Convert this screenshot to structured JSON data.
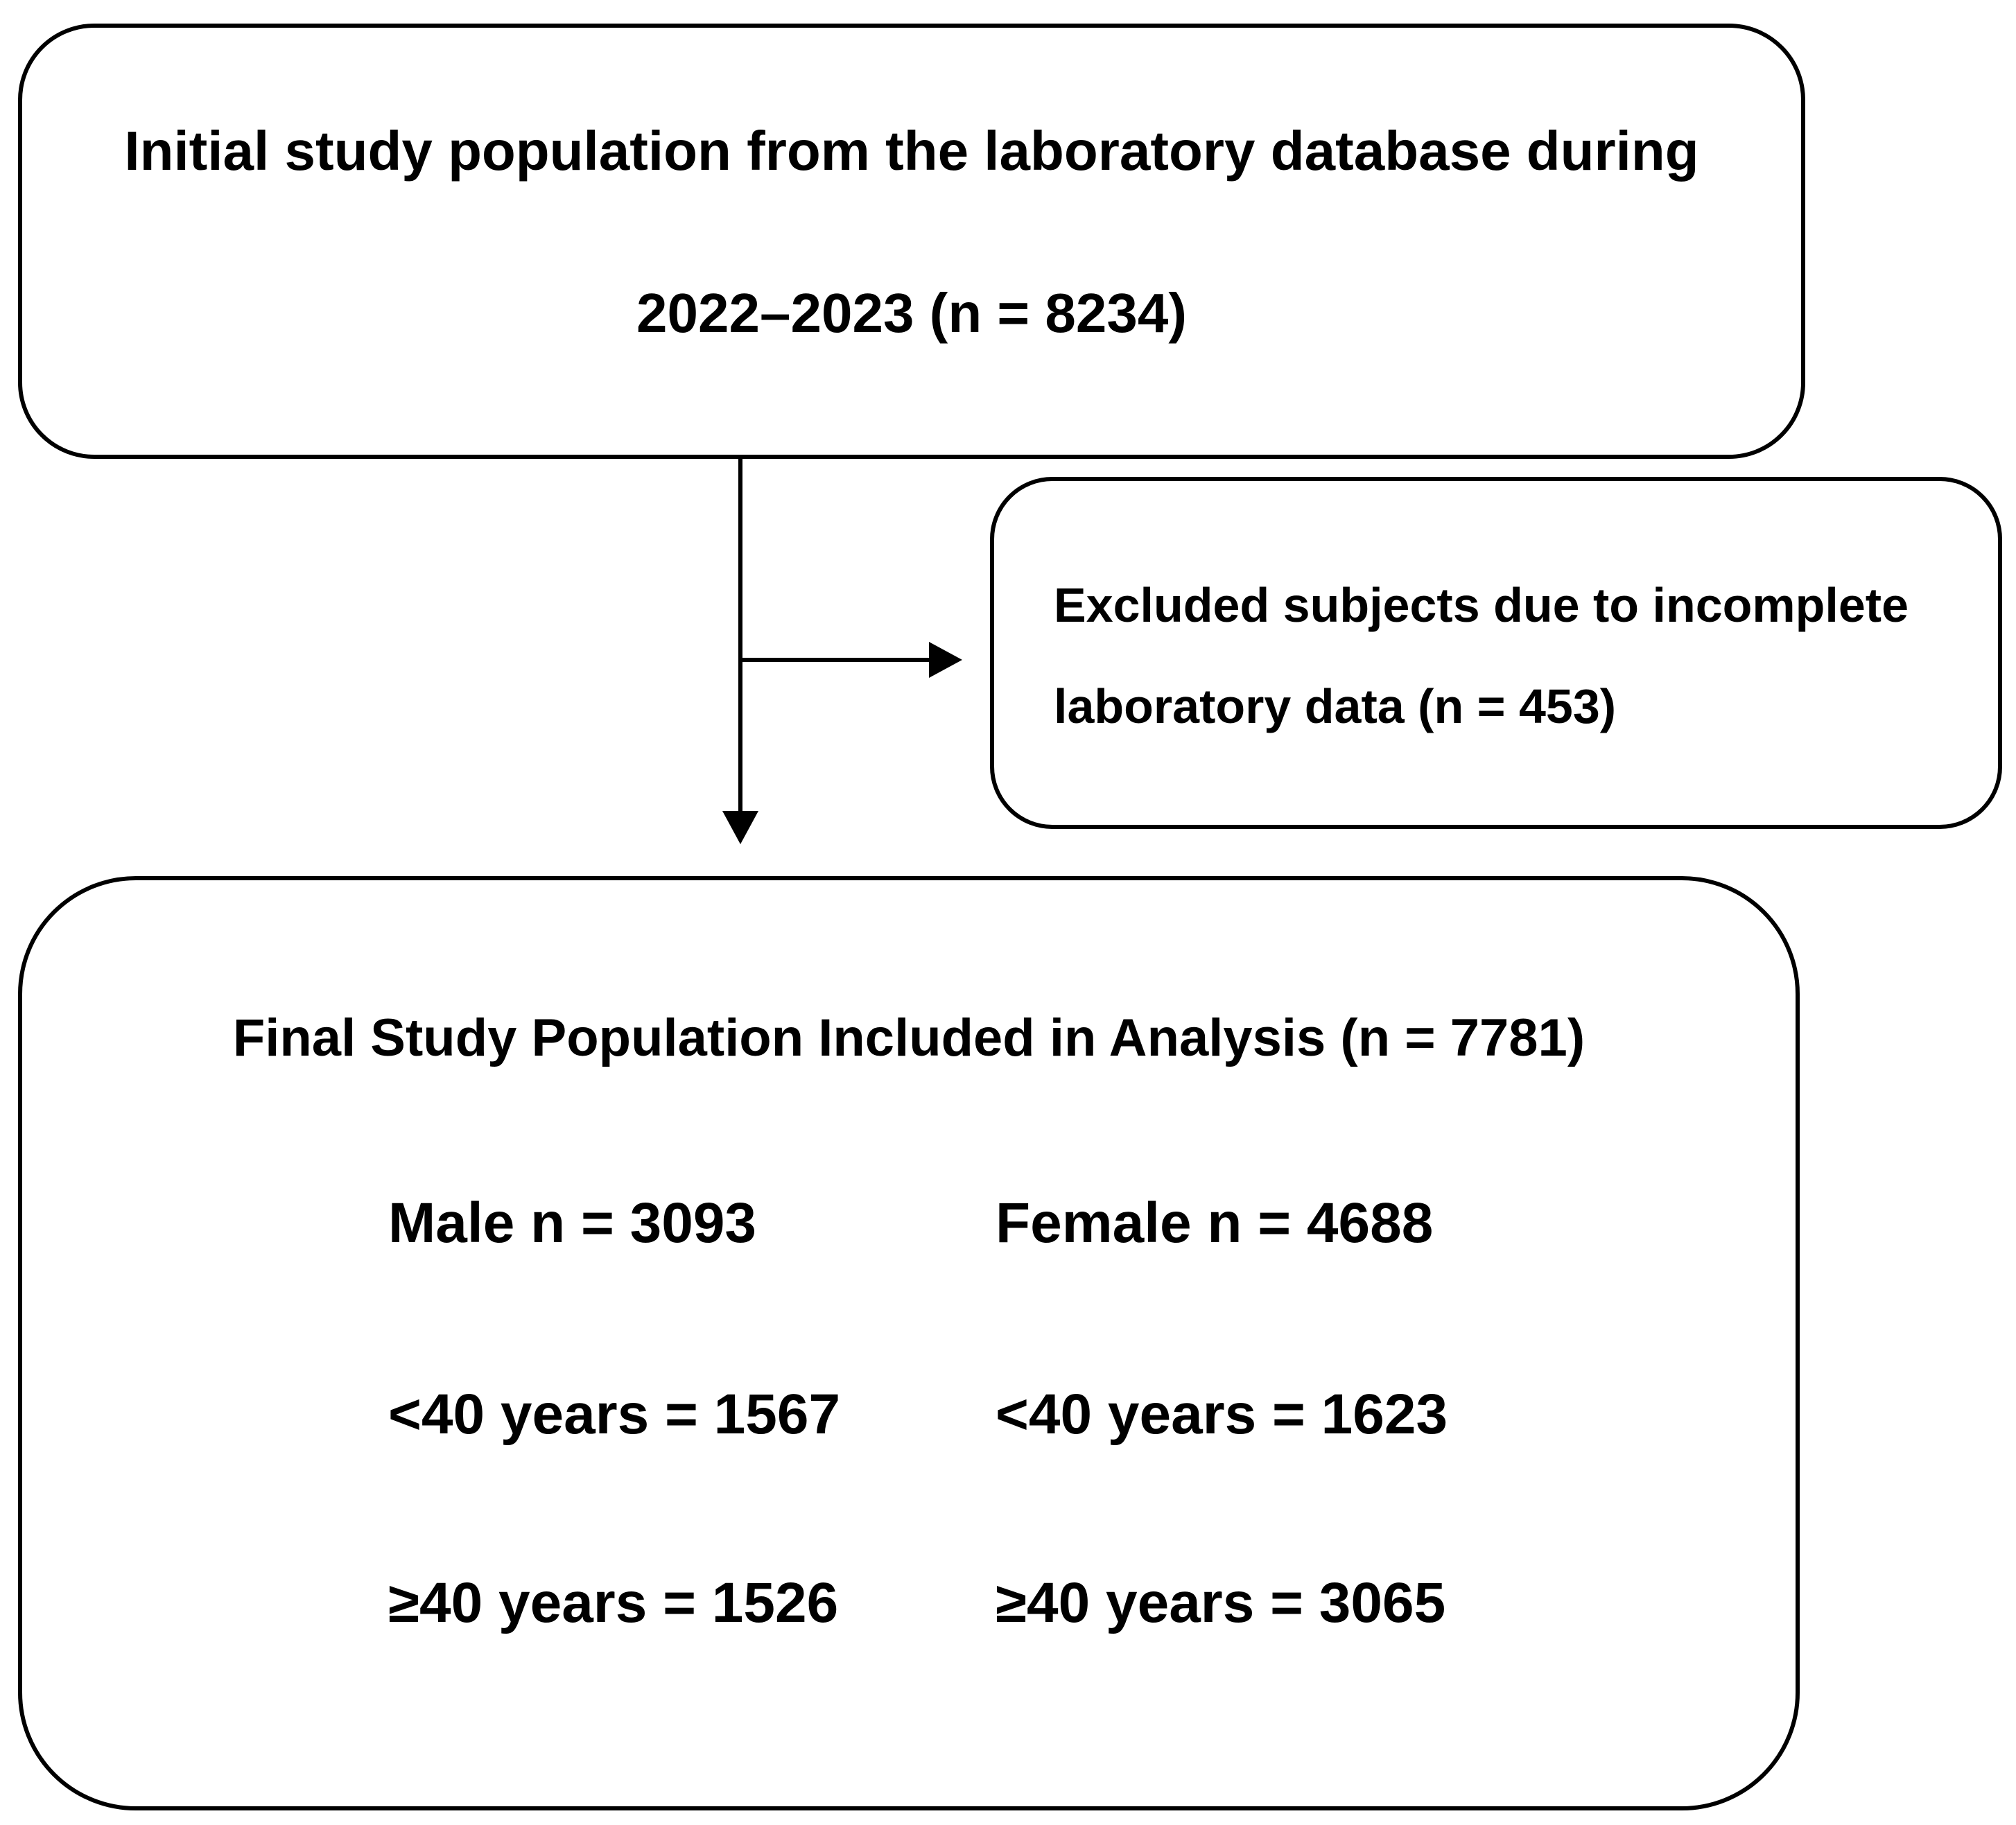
{
  "initial": {
    "line1": "Initial study population from the laboratory database during",
    "line2": "2022–2023 (n = 8234)"
  },
  "excluded": {
    "line1": "Excluded subjects due to incomplete",
    "line2": "laboratory data (n = 453)"
  },
  "final": {
    "title": "Final Study Population Included in Analysis (n = 7781)",
    "male": {
      "total": "Male n = 3093",
      "under40": "<40 years = 1567",
      "over40": "≥40 years = 1526"
    },
    "female": {
      "total": "Female n = 4688",
      "under40": "<40 years = 1623",
      "over40": "≥40 years = 3065"
    }
  },
  "colors": {
    "stroke": "#000000",
    "background": "#ffffff"
  }
}
